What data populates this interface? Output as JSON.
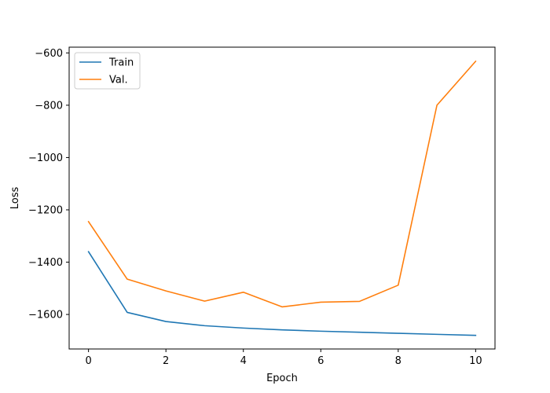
{
  "chart_data": {
    "type": "line",
    "title": "",
    "xlabel": "Epoch",
    "ylabel": "Loss",
    "x": [
      0,
      1,
      2,
      3,
      4,
      5,
      6,
      7,
      8,
      9,
      10
    ],
    "series": [
      {
        "name": "Train",
        "color": "#1f77b4",
        "values": [
          -1360,
          -1592,
          -1627,
          -1643,
          -1652,
          -1659,
          -1664,
          -1668,
          -1672,
          -1676,
          -1680
        ]
      },
      {
        "name": "Val.",
        "color": "#ff7f0e",
        "values": [
          -1245,
          -1465,
          -1510,
          -1549,
          -1515,
          -1571,
          -1553,
          -1550,
          -1488,
          -800,
          -632
        ]
      }
    ],
    "xlim": [
      -0.5,
      10.5
    ],
    "ylim": [
      -1732,
      -578
    ],
    "xticks": [
      0,
      2,
      4,
      6,
      8,
      10
    ],
    "yticks": [
      -1600,
      -1400,
      -1200,
      -1000,
      -800,
      -600
    ],
    "ytick_labels": [
      "−1600",
      "−1400",
      "−1200",
      "−1000",
      "−800",
      "−600"
    ],
    "grid": false,
    "legend": "top-left"
  }
}
